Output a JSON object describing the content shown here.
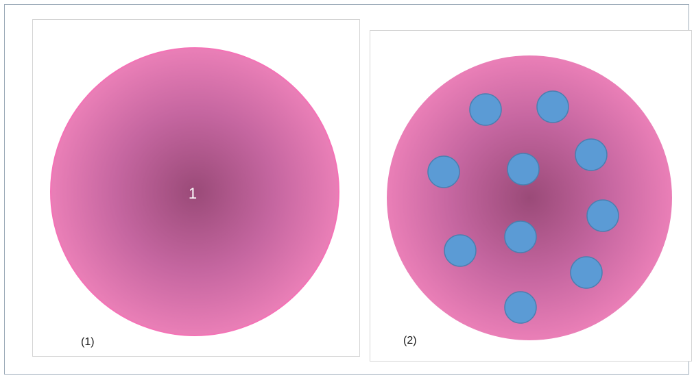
{
  "panels": [
    {
      "label": "(1)",
      "center_text": "1",
      "disc_color_edge": "#ea7fb7",
      "disc_color_center": "#9a4a78",
      "outline_color": "#f472b6"
    },
    {
      "label": "(2)",
      "disc_color_edge": "#ea7fb7",
      "disc_color_center": "#9a4a78",
      "dot_color": "#5b9bd5",
      "dot_stroke": "#4a7fb0",
      "dot_count": 10
    }
  ]
}
